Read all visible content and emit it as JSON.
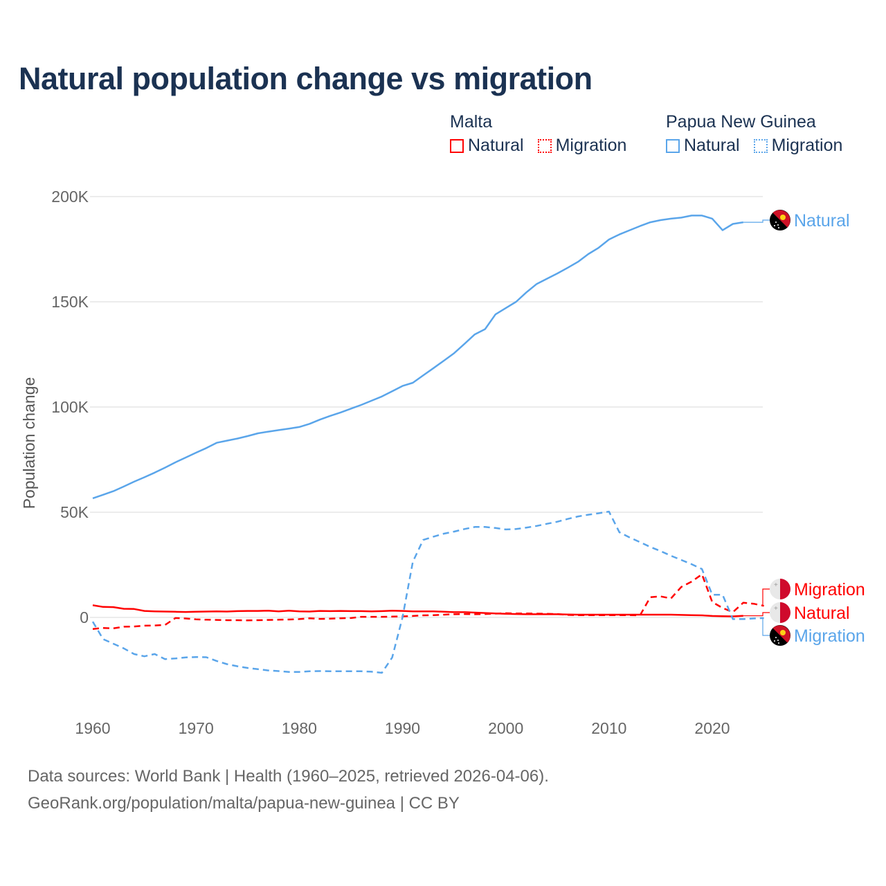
{
  "title": "Natural population change vs migration",
  "legend": {
    "groups": [
      {
        "name": "Malta",
        "color": "#ff0000",
        "items": [
          "Natural",
          "Migration"
        ]
      },
      {
        "name": "Papua New Guinea",
        "color": "#5aa5ea",
        "items": [
          "Natural",
          "Migration"
        ]
      }
    ]
  },
  "footer": {
    "line1": "Data sources: World Bank | Health (1960–2025, retrieved 2026-04-06).",
    "line2": "GeoRank.org/population/malta/papua-new-guinea | CC BY"
  },
  "chart_data": {
    "type": "line",
    "title": "Natural population change vs migration",
    "xlabel": "",
    "ylabel": "Population change",
    "xlim": [
      1960,
      2025
    ],
    "ylim": [
      -45000,
      200000
    ],
    "x_ticks": [
      1960,
      1970,
      1980,
      1990,
      2000,
      2010,
      2020
    ],
    "x_tick_labels": [
      "1960",
      "1970",
      "1980",
      "1990",
      "2000",
      "2010",
      "2020"
    ],
    "y_ticks": [
      0,
      50000,
      100000,
      150000,
      200000
    ],
    "y_tick_labels": [
      "0",
      "50K",
      "100K",
      "150K",
      "200K"
    ],
    "grid": true,
    "legend_position": "top-right",
    "series": [
      {
        "name": "Papua New Guinea Natural",
        "country": "Papua New Guinea",
        "kind": "Natural",
        "label": "Natural",
        "color": "#5aa5ea",
        "dash": false,
        "start": 1960,
        "values": [
          56600,
          58300,
          60000,
          62200,
          64500,
          66600,
          68800,
          71200,
          73700,
          76000,
          78300,
          80500,
          83000,
          84000,
          85000,
          86200,
          87500,
          88300,
          89000,
          89700,
          90500,
          92000,
          94000,
          95800,
          97400,
          99200,
          101000,
          103000,
          105000,
          107500,
          110000,
          111500,
          115000,
          118500,
          122000,
          125600,
          130000,
          134500,
          137000,
          144000,
          147000,
          150000,
          154500,
          158500,
          161000,
          163500,
          166200,
          169000,
          172700,
          175700,
          179600,
          182000,
          184000,
          186000,
          187800,
          188800,
          189500,
          190000,
          191000,
          191000,
          189500,
          184000,
          187000,
          187800
        ]
      },
      {
        "name": "Malta Migration",
        "country": "Malta",
        "kind": "Migration",
        "label": "Migration",
        "color": "#ff0000",
        "dash": true,
        "start": 1960,
        "values": [
          -5500,
          -5000,
          -5200,
          -4400,
          -4300,
          -3900,
          -3800,
          -3600,
          -300,
          -500,
          -900,
          -1100,
          -1200,
          -1300,
          -1300,
          -1400,
          -1300,
          -1200,
          -1100,
          -1000,
          -800,
          -400,
          -700,
          -600,
          -400,
          -300,
          300,
          300,
          300,
          400,
          500,
          700,
          1000,
          1100,
          1300,
          1500,
          1600,
          1500,
          1600,
          1800,
          2000,
          1900,
          1900,
          1800,
          1700,
          1600,
          1200,
          1100,
          1100,
          1100,
          1100,
          1100,
          1100,
          1000,
          9600,
          10000,
          9000,
          14500,
          17000,
          20500,
          7300,
          4500,
          2500,
          7000,
          6500,
          5500
        ]
      },
      {
        "name": "Malta Natural",
        "country": "Malta",
        "kind": "Natural",
        "label": "Natural",
        "color": "#ff0000",
        "dash": false,
        "start": 1960,
        "values": [
          5800,
          5000,
          4900,
          4100,
          4000,
          3100,
          2900,
          2800,
          2700,
          2600,
          2700,
          2800,
          2900,
          2800,
          3000,
          3100,
          3100,
          3200,
          2900,
          3200,
          2900,
          2800,
          3100,
          3000,
          3100,
          3000,
          3000,
          2900,
          3000,
          3200,
          3100,
          2900,
          2900,
          2900,
          2700,
          2500,
          2500,
          2300,
          2100,
          1900,
          1700,
          1600,
          1500,
          1500,
          1500,
          1500,
          1400,
          1300,
          1300,
          1300,
          1300,
          1300,
          1300,
          1300,
          1300,
          1300,
          1300,
          1200,
          1100,
          1000,
          700,
          600,
          500,
          800
        ]
      },
      {
        "name": "Papua New Guinea Migration",
        "country": "Papua New Guinea",
        "kind": "Migration",
        "label": "Migration",
        "color": "#5aa5ea",
        "dash": true,
        "start": 1960,
        "values": [
          -2000,
          -10300,
          -12500,
          -14700,
          -17400,
          -18500,
          -17400,
          -19800,
          -19500,
          -19000,
          -18800,
          -18900,
          -20700,
          -22200,
          -23200,
          -24000,
          -24600,
          -25200,
          -25500,
          -25900,
          -25900,
          -25600,
          -25500,
          -25600,
          -25600,
          -25600,
          -25600,
          -25800,
          -26300,
          -19000,
          0,
          26400,
          36800,
          38400,
          39800,
          40800,
          42000,
          43000,
          43000,
          42500,
          41800,
          42000,
          42700,
          43500,
          44500,
          45500,
          46800,
          48000,
          48800,
          49500,
          50300,
          40500,
          38000,
          35800,
          33500,
          31500,
          29300,
          27300,
          25300,
          23000,
          10800,
          10800,
          -800,
          -800,
          -500,
          -300
        ]
      }
    ]
  }
}
